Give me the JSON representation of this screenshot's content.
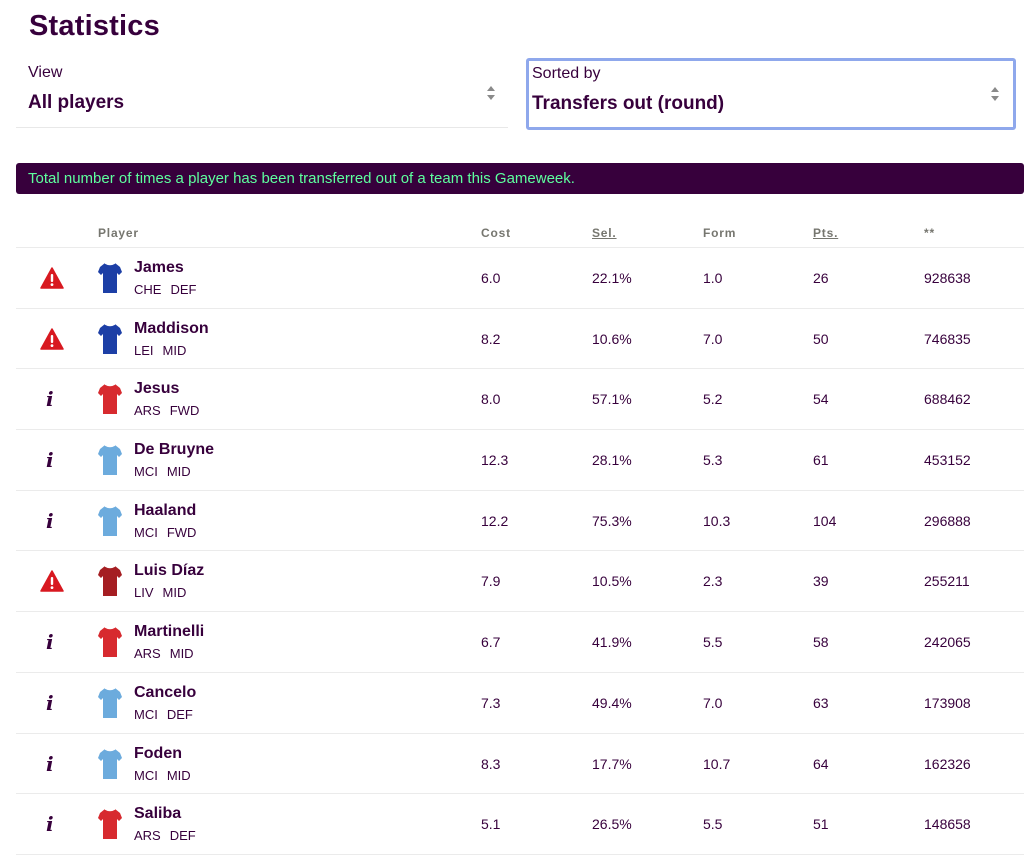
{
  "page": {
    "title": "Statistics"
  },
  "filters": {
    "view": {
      "label": "View",
      "value": "All players"
    },
    "sort": {
      "label": "Sorted by",
      "value": "Transfers out (round)"
    }
  },
  "info_text": "Total number of times a player has been transferred out of a team this Gameweek.",
  "table": {
    "headers": {
      "player": "Player",
      "cost": "Cost",
      "sel": "Sel.",
      "form": "Form",
      "pts": "Pts.",
      "stat": "**"
    },
    "rows": [
      {
        "status": "warning",
        "name": "James",
        "team": "CHE",
        "pos": "DEF",
        "kit": "blue",
        "cost": "6.0",
        "sel": "22.1%",
        "form": "1.0",
        "pts": "26",
        "stat": "928638"
      },
      {
        "status": "warning",
        "name": "Maddison",
        "team": "LEI",
        "pos": "MID",
        "kit": "blue",
        "cost": "8.2",
        "sel": "10.6%",
        "form": "7.0",
        "pts": "50",
        "stat": "746835"
      },
      {
        "status": "info",
        "name": "Jesus",
        "team": "ARS",
        "pos": "FWD",
        "kit": "red",
        "cost": "8.0",
        "sel": "57.1%",
        "form": "5.2",
        "pts": "54",
        "stat": "688462"
      },
      {
        "status": "info",
        "name": "De Bruyne",
        "team": "MCI",
        "pos": "MID",
        "kit": "skyblue",
        "cost": "12.3",
        "sel": "28.1%",
        "form": "5.3",
        "pts": "61",
        "stat": "453152"
      },
      {
        "status": "info",
        "name": "Haaland",
        "team": "MCI",
        "pos": "FWD",
        "kit": "skyblue",
        "cost": "12.2",
        "sel": "75.3%",
        "form": "10.3",
        "pts": "104",
        "stat": "296888"
      },
      {
        "status": "warning",
        "name": "Luis Díaz",
        "team": "LIV",
        "pos": "MID",
        "kit": "darkred",
        "cost": "7.9",
        "sel": "10.5%",
        "form": "2.3",
        "pts": "39",
        "stat": "255211"
      },
      {
        "status": "info",
        "name": "Martinelli",
        "team": "ARS",
        "pos": "MID",
        "kit": "red",
        "cost": "6.7",
        "sel": "41.9%",
        "form": "5.5",
        "pts": "58",
        "stat": "242065"
      },
      {
        "status": "info",
        "name": "Cancelo",
        "team": "MCI",
        "pos": "DEF",
        "kit": "skyblue",
        "cost": "7.3",
        "sel": "49.4%",
        "form": "7.0",
        "pts": "63",
        "stat": "173908"
      },
      {
        "status": "info",
        "name": "Foden",
        "team": "MCI",
        "pos": "MID",
        "kit": "skyblue",
        "cost": "8.3",
        "sel": "17.7%",
        "form": "10.7",
        "pts": "64",
        "stat": "162326"
      },
      {
        "status": "info",
        "name": "Saliba",
        "team": "ARS",
        "pos": "DEF",
        "kit": "red",
        "cost": "5.1",
        "sel": "26.5%",
        "form": "5.5",
        "pts": "51",
        "stat": "148658"
      }
    ]
  },
  "colors": {
    "brand": "#37003c",
    "accent_green": "#00ff85",
    "warning_red": "#d81920",
    "kit_blue": "#1d3fa6",
    "kit_red": "#d72a2f",
    "kit_skyblue": "#6cabdd",
    "kit_darkred": "#a51e22"
  },
  "icons": {
    "warning": "warning-triangle-icon",
    "info": "info-icon",
    "select": "select-arrows-icon"
  }
}
